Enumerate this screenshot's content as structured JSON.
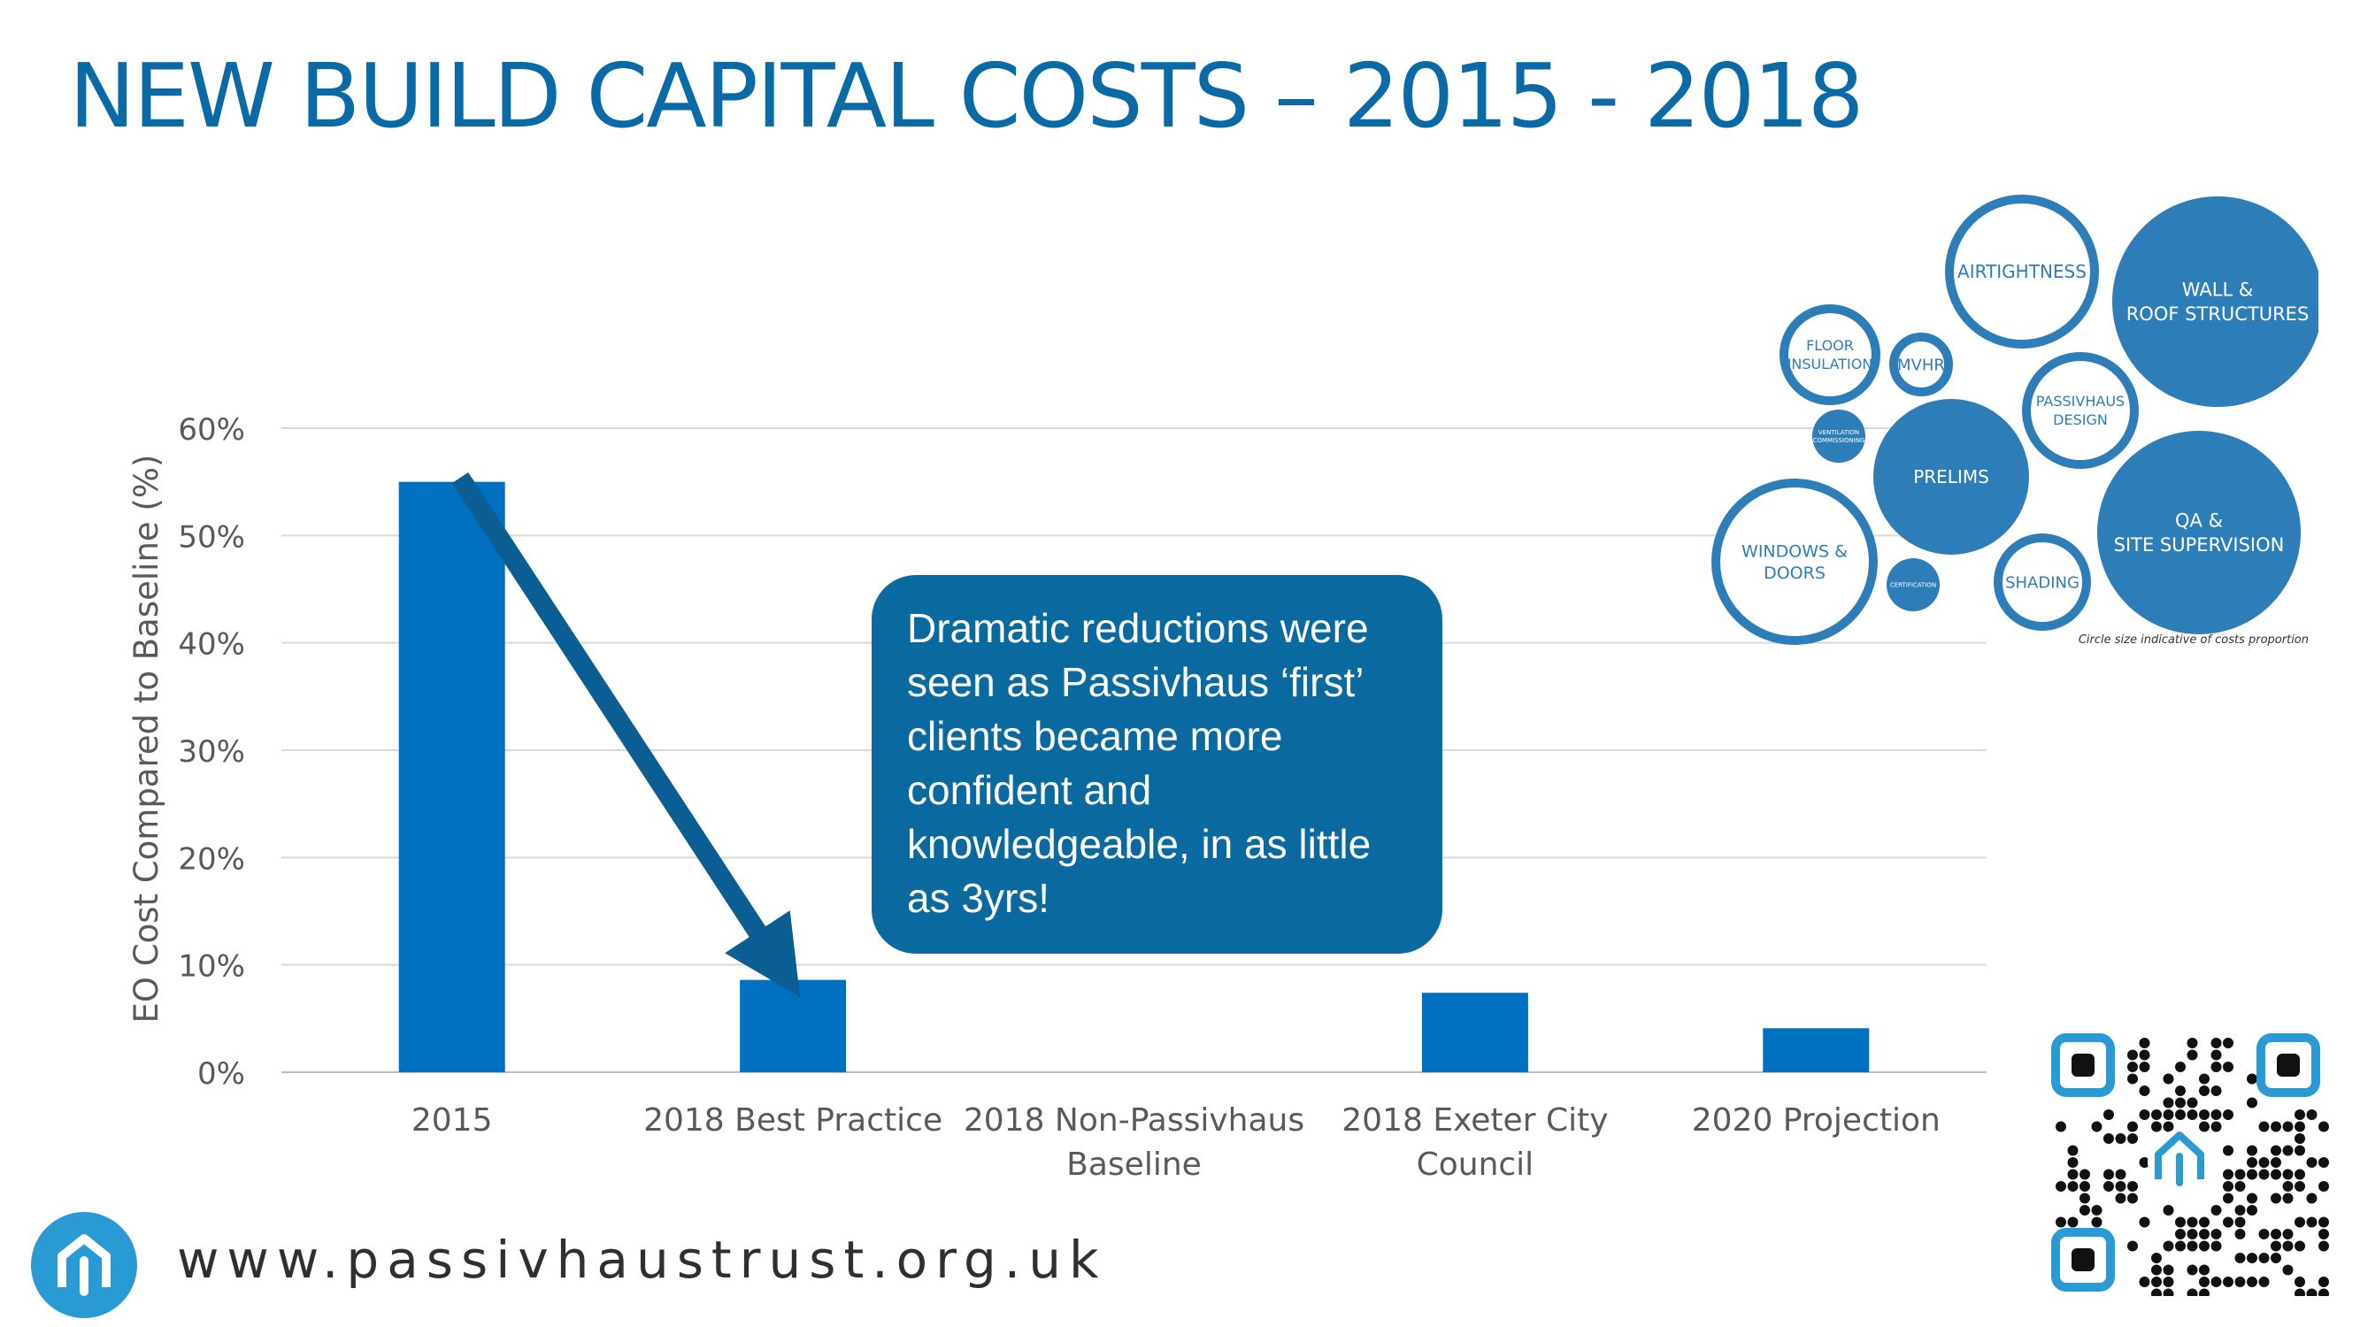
{
  "title": "NEW BUILD CAPITAL COSTS – 2015 - 2018",
  "callout": "Dramatic reductions were seen as Passivhaus ‘first’ clients became more confident and knowledgeable, in as little as 3yrs!",
  "footer_url": "www.passivhaustrust.org.uk",
  "bubble_caption": "Circle size indicative of costs proportion",
  "colors": {
    "bar": "#0070c0",
    "title": "#0a6aa6",
    "bubble": "#2d7db8",
    "arrow": "#0b5e94"
  },
  "bubbles": [
    {
      "label": "AIRTIGHTNESS",
      "style": "outline"
    },
    {
      "label": "WALL & ROOF STRUCTURES",
      "style": "filled"
    },
    {
      "label": "FLOOR INSULATION",
      "style": "outline"
    },
    {
      "label": "MVHR",
      "style": "outline"
    },
    {
      "label": "PASSIVHAUS DESIGN",
      "style": "outline"
    },
    {
      "label": "VENTILATION COMMISSIONING",
      "style": "filled"
    },
    {
      "label": "PRELIMS",
      "style": "filled"
    },
    {
      "label": "QA & SITE SUPERVISION",
      "style": "filled"
    },
    {
      "label": "WINDOWS & DOORS",
      "style": "outline"
    },
    {
      "label": "CERTIFICATION",
      "style": "filled"
    },
    {
      "label": "SHADING",
      "style": "outline"
    }
  ],
  "chart_data": {
    "type": "bar",
    "categories": [
      "2015",
      "2018 Best Practice",
      "2018 Non-Passivhaus Baseline",
      "2018 Exeter City Council",
      "2020 Projection"
    ],
    "values": [
      55,
      8.6,
      0,
      7.4,
      4.1
    ],
    "ylabel": "EO Cost Compared to Baseline (%)",
    "yticks": [
      "0%",
      "10%",
      "20%",
      "30%",
      "40%",
      "50%",
      "60%"
    ],
    "ylim": [
      0,
      60
    ],
    "grid": true,
    "legend": "none"
  }
}
